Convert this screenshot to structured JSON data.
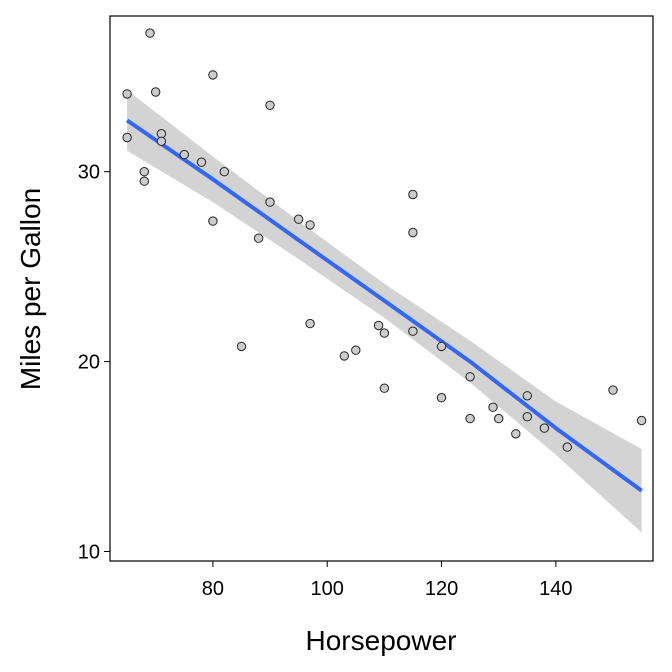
{
  "chart_data": {
    "type": "scatter",
    "title": "",
    "xlabel": "Horsepower",
    "ylabel": "Miles per Gallon",
    "xlim": [
      62,
      157
    ],
    "ylim": [
      9.5,
      38.2
    ],
    "xticks": [
      80,
      100,
      120,
      140
    ],
    "yticks": [
      10,
      20,
      30
    ],
    "grid": false,
    "legend": "none",
    "colors": {
      "fit_line": "#3366ff",
      "band": "#d3d3d3",
      "point_fill": "#cccccc",
      "point_stroke": "#222222"
    },
    "points": [
      [
        65,
        34.1
      ],
      [
        65,
        31.8
      ],
      [
        68,
        30.0
      ],
      [
        68,
        29.5
      ],
      [
        69,
        37.3
      ],
      [
        70,
        34.2
      ],
      [
        71,
        32.0
      ],
      [
        71,
        31.6
      ],
      [
        75,
        30.9
      ],
      [
        78,
        30.5
      ],
      [
        80,
        35.1
      ],
      [
        80,
        27.4
      ],
      [
        82,
        30.0
      ],
      [
        85,
        20.8
      ],
      [
        88,
        26.5
      ],
      [
        90,
        33.5
      ],
      [
        90,
        28.4
      ],
      [
        95,
        27.5
      ],
      [
        97,
        27.2
      ],
      [
        97,
        22.0
      ],
      [
        103,
        20.3
      ],
      [
        105,
        20.6
      ],
      [
        109,
        21.9
      ],
      [
        110,
        21.5
      ],
      [
        110,
        18.6
      ],
      [
        115,
        28.8
      ],
      [
        115,
        26.8
      ],
      [
        115,
        21.6
      ],
      [
        120,
        20.8
      ],
      [
        120,
        18.1
      ],
      [
        125,
        19.2
      ],
      [
        125,
        17.0
      ],
      [
        129,
        17.6
      ],
      [
        130,
        17.0
      ],
      [
        133,
        16.2
      ],
      [
        135,
        18.2
      ],
      [
        135,
        17.1
      ],
      [
        138,
        16.5
      ],
      [
        142,
        15.5
      ],
      [
        150,
        18.5
      ],
      [
        155,
        16.9
      ]
    ],
    "fit": {
      "x": [
        65,
        80,
        95,
        110,
        125,
        140,
        155
      ],
      "y": [
        32.7,
        29.6,
        26.4,
        23.2,
        20.0,
        16.5,
        13.2
      ],
      "lower": [
        31.1,
        28.4,
        25.4,
        22.3,
        18.9,
        15.1,
        11.0
      ],
      "upper": [
        34.3,
        30.8,
        27.4,
        24.1,
        21.1,
        17.9,
        15.4
      ]
    }
  }
}
